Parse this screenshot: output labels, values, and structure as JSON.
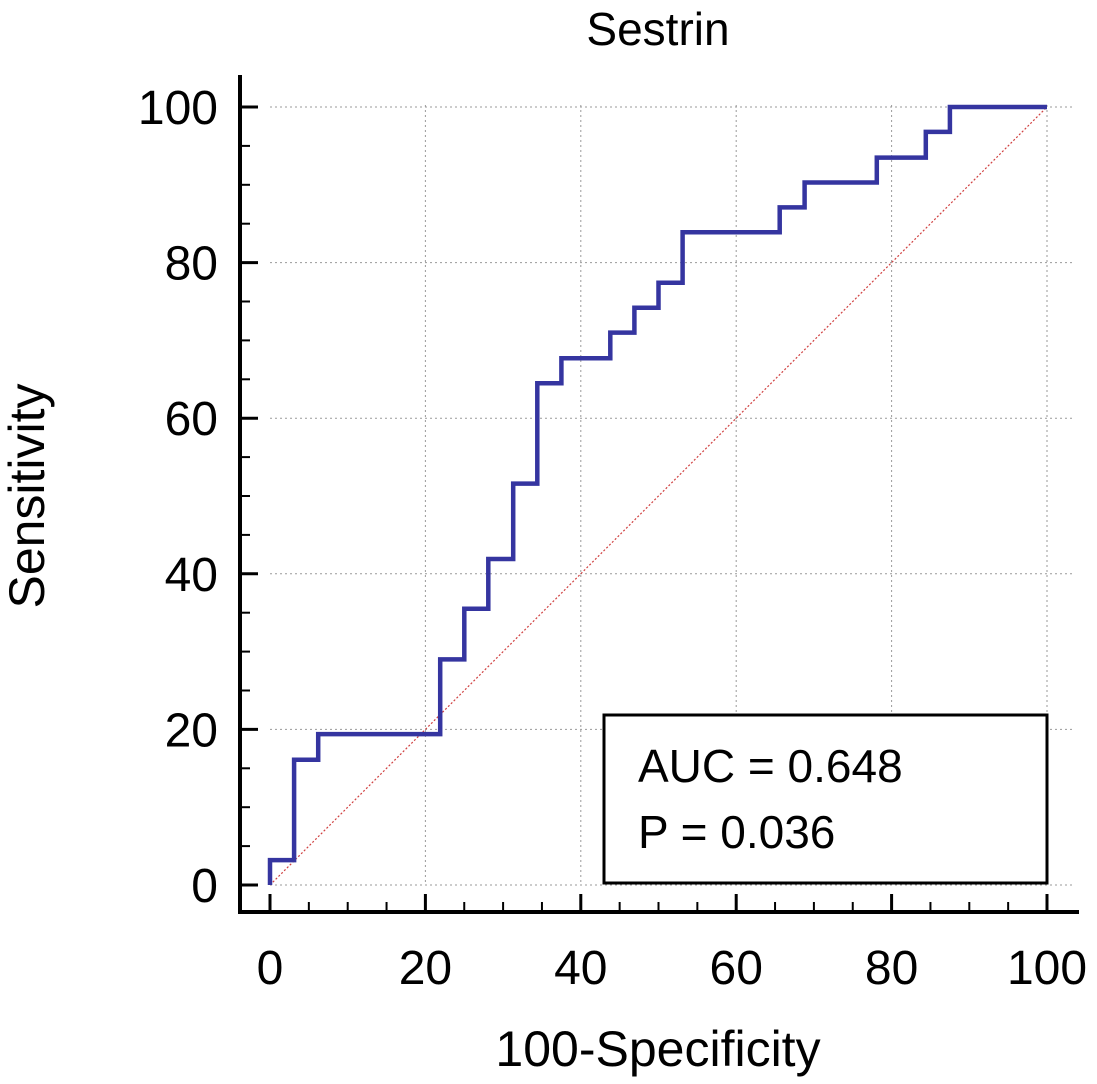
{
  "chart_data": {
    "type": "line",
    "title": "Sestrin",
    "xlabel": "100-Specificity",
    "ylabel": "Sensitivity",
    "xlim": [
      0,
      100
    ],
    "ylim": [
      0,
      100
    ],
    "xticks": [
      0,
      20,
      40,
      60,
      80,
      100
    ],
    "yticks": [
      0,
      20,
      40,
      60,
      80,
      100
    ],
    "grid": true,
    "series": [
      {
        "color": "#3535a0",
        "steps": [
          [
            0,
            0
          ],
          [
            0,
            3.2
          ],
          [
            3.1,
            3.2
          ],
          [
            3.1,
            16.1
          ],
          [
            6.2,
            16.1
          ],
          [
            6.2,
            19.4
          ],
          [
            21.9,
            19.4
          ],
          [
            21.9,
            29.0
          ],
          [
            25.0,
            29.0
          ],
          [
            25.0,
            35.5
          ],
          [
            28.1,
            35.5
          ],
          [
            28.1,
            41.9
          ],
          [
            31.3,
            41.9
          ],
          [
            31.3,
            51.6
          ],
          [
            34.4,
            51.6
          ],
          [
            34.4,
            64.5
          ],
          [
            37.5,
            64.5
          ],
          [
            37.5,
            67.7
          ],
          [
            43.8,
            67.7
          ],
          [
            43.8,
            71.0
          ],
          [
            46.9,
            71.0
          ],
          [
            46.9,
            74.2
          ],
          [
            50.0,
            74.2
          ],
          [
            50.0,
            77.4
          ],
          [
            53.1,
            77.4
          ],
          [
            53.1,
            83.9
          ],
          [
            65.6,
            83.9
          ],
          [
            65.6,
            87.1
          ],
          [
            68.8,
            87.1
          ],
          [
            68.8,
            90.3
          ],
          [
            78.1,
            90.3
          ],
          [
            78.1,
            93.5
          ],
          [
            84.4,
            93.5
          ],
          [
            84.4,
            96.8
          ],
          [
            87.5,
            96.8
          ],
          [
            87.5,
            100
          ],
          [
            100,
            100
          ]
        ]
      },
      {
        "type": "reference",
        "color": "#d04040",
        "points": [
          [
            0,
            0
          ],
          [
            100,
            100
          ]
        ]
      }
    ],
    "annotation": {
      "lines": [
        "AUC = 0.648",
        "P = 0.036"
      ],
      "placement": "bottom-right"
    }
  }
}
